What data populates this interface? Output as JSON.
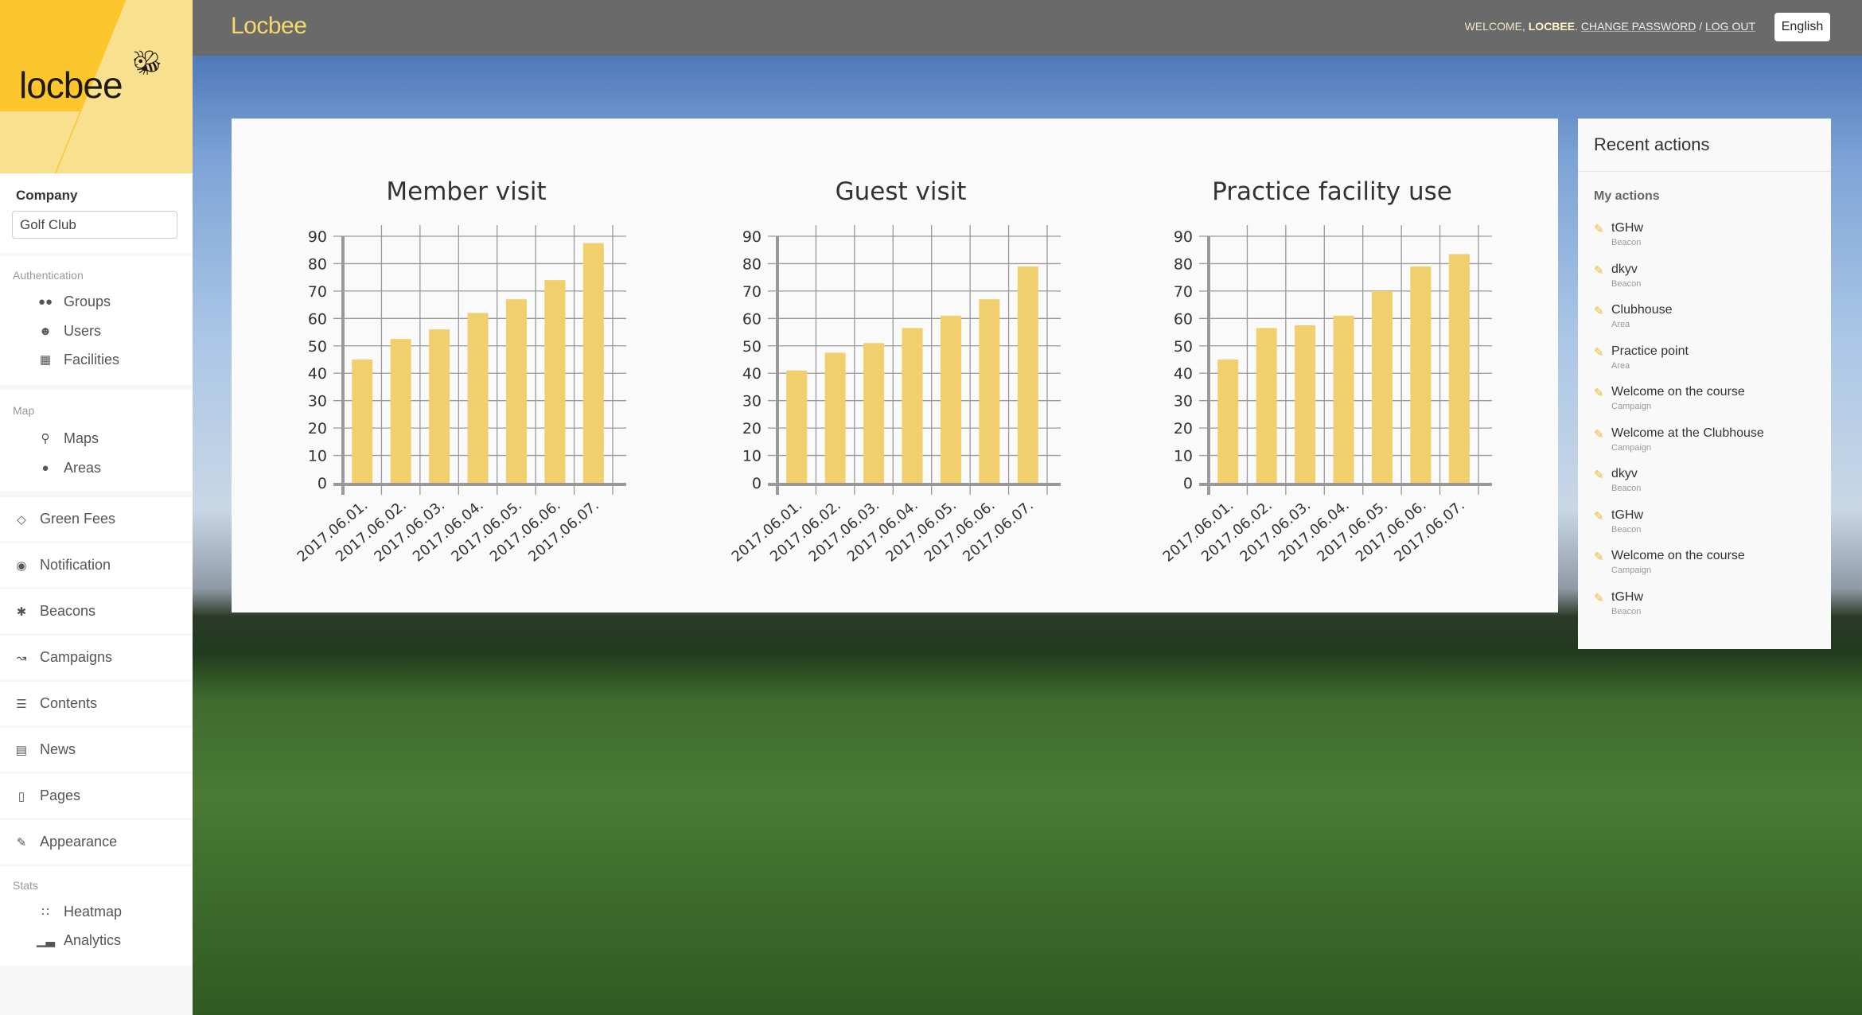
{
  "header": {
    "brand": "Locbee",
    "welcome": "WELCOME,",
    "user": "LOCBEE",
    "change_password": "CHANGE PASSWORD",
    "separator": "/",
    "logout": "LOG OUT",
    "language": "English"
  },
  "sidebar": {
    "logo_text": "locbee",
    "company_label": "Company",
    "company_value": "Golf Club",
    "groups": [
      {
        "label": "Authentication",
        "items": [
          {
            "label": "Groups",
            "icon": "users-group-icon"
          },
          {
            "label": "Users",
            "icon": "user-icon"
          },
          {
            "label": "Facilities",
            "icon": "building-icon"
          }
        ]
      },
      {
        "label": "Map",
        "items": [
          {
            "label": "Maps",
            "icon": "map-marker-icon"
          },
          {
            "label": "Areas",
            "icon": "pin-icon"
          }
        ]
      }
    ],
    "items": [
      {
        "label": "Green Fees",
        "icon": "ticket-icon"
      },
      {
        "label": "Notification",
        "icon": "globe-icon"
      },
      {
        "label": "Beacons",
        "icon": "bluetooth-icon"
      },
      {
        "label": "Campaigns",
        "icon": "line-chart-icon"
      },
      {
        "label": "Contents",
        "icon": "list-icon"
      },
      {
        "label": "News",
        "icon": "newspaper-icon"
      },
      {
        "label": "Pages",
        "icon": "file-icon"
      },
      {
        "label": "Appearance",
        "icon": "pencil-icon"
      }
    ],
    "stats": {
      "label": "Stats",
      "items": [
        {
          "label": "Heatmap",
          "icon": "heatmap-icon"
        },
        {
          "label": "Analytics",
          "icon": "bar-chart-icon"
        }
      ]
    }
  },
  "recent": {
    "title": "Recent actions",
    "subtitle": "My actions",
    "items": [
      {
        "name": "tGHw",
        "type": "Beacon"
      },
      {
        "name": "dkyv",
        "type": "Beacon"
      },
      {
        "name": "Clubhouse",
        "type": "Area"
      },
      {
        "name": "Practice point",
        "type": "Area"
      },
      {
        "name": "Welcome on the course",
        "type": "Campaign"
      },
      {
        "name": "Welcome at the Clubhouse",
        "type": "Campaign"
      },
      {
        "name": "dkyv",
        "type": "Beacon"
      },
      {
        "name": "tGHw",
        "type": "Beacon"
      },
      {
        "name": "Welcome on the course",
        "type": "Campaign"
      },
      {
        "name": "tGHw",
        "type": "Beacon"
      }
    ]
  },
  "colors": {
    "bar": "#f0cf6c",
    "accent": "#f0b42a",
    "topbar": "#6a6a6a"
  },
  "chart_data": [
    {
      "type": "bar",
      "title": "Member visit",
      "categories": [
        "2017.06.01.",
        "2017.06.02.",
        "2017.06.03.",
        "2017.06.04.",
        "2017.06.05.",
        "2017.06.06.",
        "2017.06.07."
      ],
      "values": [
        45,
        52.5,
        56,
        62,
        67,
        74,
        87.5
      ],
      "ylim": [
        0,
        90
      ],
      "yticks": [
        0,
        10,
        20,
        30,
        40,
        50,
        60,
        70,
        80,
        90
      ],
      "grid": true
    },
    {
      "type": "bar",
      "title": "Guest visit",
      "categories": [
        "2017.06.01.",
        "2017.06.02.",
        "2017.06.03.",
        "2017.06.04.",
        "2017.06.05.",
        "2017.06.06.",
        "2017.06.07."
      ],
      "values": [
        41,
        47.5,
        51,
        56.5,
        61,
        67,
        79
      ],
      "ylim": [
        0,
        90
      ],
      "yticks": [
        0,
        10,
        20,
        30,
        40,
        50,
        60,
        70,
        80,
        90
      ],
      "grid": true
    },
    {
      "type": "bar",
      "title": "Practice facility use",
      "categories": [
        "2017.06.01.",
        "2017.06.02.",
        "2017.06.03.",
        "2017.06.04.",
        "2017.06.05.",
        "2017.06.06.",
        "2017.06.07."
      ],
      "values": [
        45,
        56.5,
        57.5,
        61,
        70,
        79,
        83.5
      ],
      "ylim": [
        0,
        90
      ],
      "yticks": [
        0,
        10,
        20,
        30,
        40,
        50,
        60,
        70,
        80,
        90
      ],
      "grid": true
    }
  ]
}
